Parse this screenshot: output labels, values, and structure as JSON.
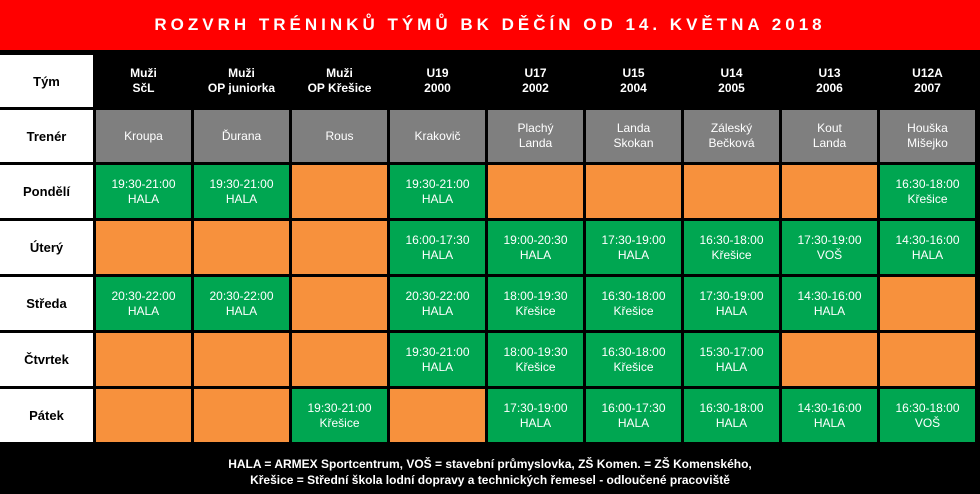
{
  "title": "ROZVRH TRÉNINKŮ TÝMŮ BK DĚČÍN OD 14. KVĚTNA 2018",
  "colors": {
    "title_bg": "#ff0000",
    "training": "#00a651",
    "no_training": "#f7913d",
    "trainer_bg": "#7f7f7f",
    "label_bg": "#ffffff",
    "header_bg": "#000000"
  },
  "table": {
    "team_label": "Tým",
    "trainer_label": "Trenér",
    "teams": [
      {
        "line1": "Muži",
        "line2": "SčL",
        "trainer1": "Kroupa",
        "trainer2": ""
      },
      {
        "line1": "Muži",
        "line2": "OP juniorka",
        "trainer1": "Ďurana",
        "trainer2": ""
      },
      {
        "line1": "Muži",
        "line2": "OP Křešice",
        "trainer1": "Rous",
        "trainer2": ""
      },
      {
        "line1": "U19",
        "line2": "2000",
        "trainer1": "Krakovič",
        "trainer2": ""
      },
      {
        "line1": "U17",
        "line2": "2002",
        "trainer1": "Plachý",
        "trainer2": "Landa"
      },
      {
        "line1": "U15",
        "line2": "2004",
        "trainer1": "Landa",
        "trainer2": "Skokan"
      },
      {
        "line1": "U14",
        "line2": "2005",
        "trainer1": "Záleský",
        "trainer2": "Bečková"
      },
      {
        "line1": "U13",
        "line2": "2006",
        "trainer1": "Kout",
        "trainer2": "Landa"
      },
      {
        "line1": "U12A",
        "line2": "2007",
        "trainer1": "Houška",
        "trainer2": "Mišejko"
      }
    ],
    "days": [
      {
        "name": "Pondělí",
        "slots": [
          {
            "time": "19:30-21:00",
            "place": "HALA"
          },
          {
            "time": "19:30-21:00",
            "place": "HALA"
          },
          null,
          {
            "time": "19:30-21:00",
            "place": "HALA"
          },
          null,
          null,
          null,
          null,
          {
            "time": "16:30-18:00",
            "place": "Křešice"
          }
        ]
      },
      {
        "name": "Úterý",
        "slots": [
          null,
          null,
          null,
          {
            "time": "16:00-17:30",
            "place": "HALA"
          },
          {
            "time": "19:00-20:30",
            "place": "HALA"
          },
          {
            "time": "17:30-19:00",
            "place": "HALA"
          },
          {
            "time": "16:30-18:00",
            "place": "Křešice"
          },
          {
            "time": "17:30-19:00",
            "place": "VOŠ"
          },
          {
            "time": "14:30-16:00",
            "place": "HALA"
          }
        ]
      },
      {
        "name": "Středa",
        "slots": [
          {
            "time": "20:30-22:00",
            "place": "HALA"
          },
          {
            "time": "20:30-22:00",
            "place": "HALA"
          },
          null,
          {
            "time": "20:30-22:00",
            "place": "HALA"
          },
          {
            "time": "18:00-19:30",
            "place": "Křešice"
          },
          {
            "time": "16:30-18:00",
            "place": "Křešice"
          },
          {
            "time": "17:30-19:00",
            "place": "HALA"
          },
          {
            "time": "14:30-16:00",
            "place": "HALA"
          },
          null
        ]
      },
      {
        "name": "Čtvrtek",
        "slots": [
          null,
          null,
          null,
          {
            "time": "19:30-21:00",
            "place": "HALA"
          },
          {
            "time": "18:00-19:30",
            "place": "Křešice"
          },
          {
            "time": "16:30-18:00",
            "place": "Křešice"
          },
          {
            "time": "15:30-17:00",
            "place": "HALA"
          },
          null,
          null
        ]
      },
      {
        "name": "Pátek",
        "slots": [
          null,
          null,
          {
            "time": "19:30-21:00",
            "place": "Křešice"
          },
          null,
          {
            "time": "17:30-19:00",
            "place": "HALA"
          },
          {
            "time": "16:00-17:30",
            "place": "HALA"
          },
          {
            "time": "16:30-18:00",
            "place": "HALA"
          },
          {
            "time": "14:30-16:00",
            "place": "HALA"
          },
          {
            "time": "16:30-18:00",
            "place": "VOŠ"
          }
        ]
      }
    ]
  },
  "footer": {
    "line1": "HALA = ARMEX Sportcentrum, VOŠ = stavební průmyslovka, ZŠ Komen. = ZŠ Komenského,",
    "line2": "Křešice = Střední škola lodní dopravy a technických řemesel - odloučené pracoviště"
  }
}
